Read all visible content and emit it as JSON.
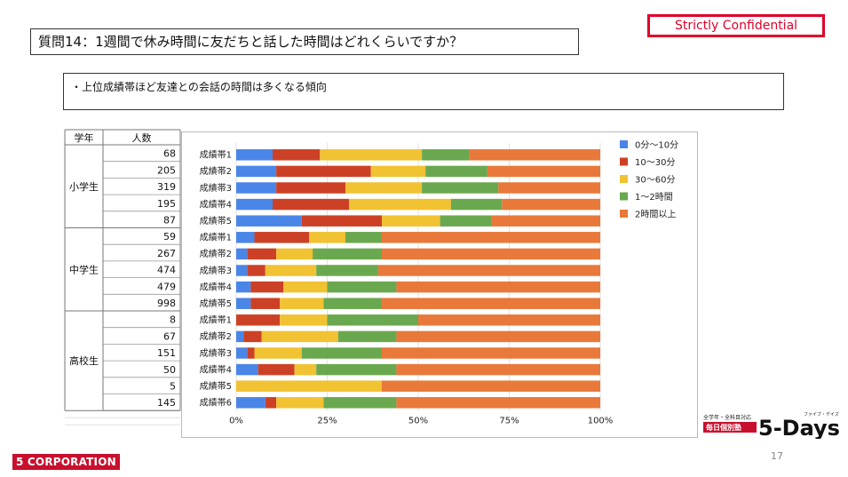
{
  "badge": {
    "confidential": "Strictly Confidential"
  },
  "title": "質問14：1週間で休み時間に友だちと話した時間はどれくらいですか？",
  "note": "・上位成績帯ほど友達との会話の時間は多くなる傾向",
  "table": {
    "headers": [
      "学年",
      "人数"
    ],
    "groups": [
      {
        "grade": "小学生",
        "counts": [
          "68",
          "205",
          "319",
          "195",
          "87"
        ]
      },
      {
        "grade": "中学生",
        "counts": [
          "59",
          "267",
          "474",
          "479",
          "998"
        ]
      },
      {
        "grade": "高校生",
        "counts": [
          "8",
          "67",
          "151",
          "50",
          "5",
          "145"
        ]
      }
    ]
  },
  "chart_data": {
    "type": "bar",
    "orientation": "horizontal",
    "stacked": "percent",
    "categories": [
      "成績帯1",
      "成績帯2",
      "成績帯3",
      "成績帯4",
      "成績帯5",
      "成績帯1",
      "成績帯2",
      "成績帯3",
      "成績帯4",
      "成績帯5",
      "成績帯1",
      "成績帯2",
      "成績帯3",
      "成績帯4",
      "成績帯5",
      "成績帯6"
    ],
    "series": [
      {
        "name": "0分〜10分",
        "color": "#4a86e8",
        "values": [
          10,
          11,
          11,
          10,
          18,
          5,
          3,
          3,
          4,
          4,
          0,
          2,
          3,
          6,
          0,
          8
        ]
      },
      {
        "name": "10〜30分",
        "color": "#cc4125",
        "values": [
          13,
          26,
          19,
          21,
          22,
          15,
          8,
          5,
          9,
          8,
          12,
          5,
          2,
          10,
          0,
          3
        ]
      },
      {
        "name": "30〜60分",
        "color": "#f1c232",
        "values": [
          28,
          15,
          21,
          28,
          16,
          10,
          10,
          14,
          12,
          12,
          13,
          21,
          13,
          6,
          40,
          13
        ]
      },
      {
        "name": "1〜2時間",
        "color": "#6aa84f",
        "values": [
          13,
          17,
          21,
          14,
          14,
          10,
          19,
          17,
          19,
          16,
          25,
          16,
          22,
          22,
          0,
          20
        ]
      },
      {
        "name": "2時間以上",
        "color": "#e8793a",
        "values": [
          36,
          31,
          28,
          27,
          30,
          60,
          60,
          61,
          56,
          60,
          50,
          56,
          60,
          56,
          60,
          56
        ]
      }
    ],
    "xlim": [
      0,
      100
    ],
    "xticks": [
      "0%",
      "25%",
      "50%",
      "75%",
      "100%"
    ],
    "legend": "right"
  },
  "footer": {
    "page_number": "17",
    "corporation": "5 CORPORATION",
    "logo_tag_top": "全学年・全科目対応",
    "logo_tag_bottom": "毎日個別塾",
    "logo_main": "5-Days",
    "logo_ruby": "ファイブ・デイズ"
  }
}
